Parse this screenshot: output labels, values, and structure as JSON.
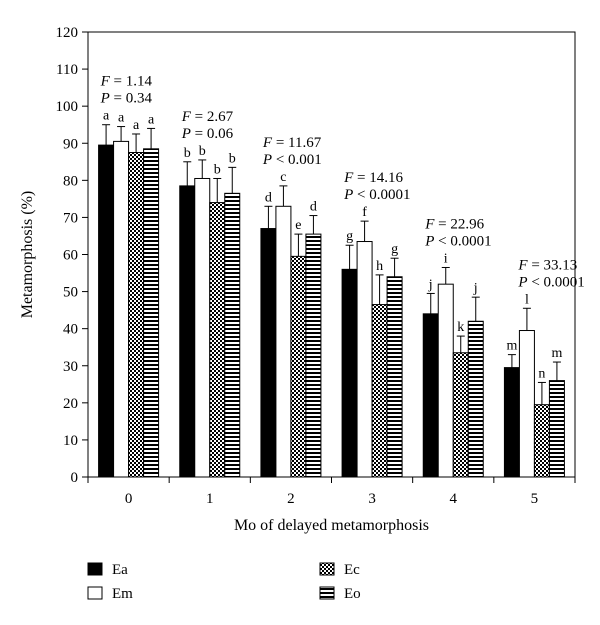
{
  "chart_data": {
    "type": "bar",
    "xlabel": "Mo of delayed metamorphosis",
    "ylabel": "Metamorphosis (%)",
    "ylim": [
      0,
      120
    ],
    "yticks": [
      0,
      10,
      20,
      30,
      40,
      50,
      60,
      70,
      80,
      90,
      100,
      110,
      120
    ],
    "categories": [
      "0",
      "1",
      "2",
      "3",
      "4",
      "5"
    ],
    "series": [
      {
        "name": "Ea",
        "pattern": "solid-black",
        "values": [
          89.5,
          78.5,
          67,
          56,
          44,
          29.5
        ],
        "errors": [
          5.5,
          6.5,
          6,
          6.5,
          5.5,
          3.5
        ],
        "letters": [
          "a",
          "b",
          "d",
          "g",
          "j",
          "m"
        ]
      },
      {
        "name": "Em",
        "pattern": "white",
        "values": [
          90.5,
          80.5,
          73,
          63.5,
          52,
          39.5
        ],
        "errors": [
          4,
          5,
          5.5,
          5.5,
          4.5,
          6
        ],
        "letters": [
          "a",
          "b",
          "c",
          "f",
          "i",
          "l"
        ]
      },
      {
        "name": "Ec",
        "pattern": "checker",
        "values": [
          87.5,
          74,
          59.5,
          46.5,
          33.5,
          19.5
        ],
        "errors": [
          5,
          6.5,
          6,
          8,
          4.5,
          6
        ],
        "letters": [
          "a",
          "b",
          "e",
          "h",
          "k",
          "n"
        ]
      },
      {
        "name": "Eo",
        "pattern": "horizontal-stripes",
        "values": [
          88.5,
          76.5,
          65.5,
          54,
          42,
          26
        ],
        "errors": [
          5.5,
          7,
          5,
          5,
          6.5,
          5
        ],
        "letters": [
          "a",
          "b",
          "d",
          "g",
          "j",
          "m"
        ]
      }
    ],
    "annotations": [
      {
        "category": "0",
        "f_label": "F",
        "f_value": "= 1.14",
        "p_label": "P",
        "p_value": "= 0.34"
      },
      {
        "category": "1",
        "f_label": "F",
        "f_value": "= 2.67",
        "p_label": "P",
        "p_value": "= 0.06"
      },
      {
        "category": "2",
        "f_label": "F",
        "f_value": "= 11.67",
        "p_label": "P",
        "p_value": "< 0.001"
      },
      {
        "category": "3",
        "f_label": "F",
        "f_value": "= 14.16",
        "p_label": "P",
        "p_value": "< 0.0001"
      },
      {
        "category": "4",
        "f_label": "F",
        "f_value": "= 22.96",
        "p_label": "P",
        "p_value": "< 0.0001"
      },
      {
        "category": "5",
        "f_label": "F",
        "f_value": "= 33.13",
        "p_label": "P",
        "p_value": "< 0.0001"
      }
    ],
    "legend_placement": "bottom",
    "grid": false
  }
}
